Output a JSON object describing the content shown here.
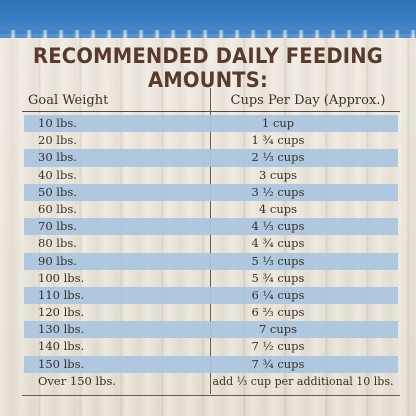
{
  "title": "RECOMMENDED DAILY FEEDING AMOUNTS:",
  "columns": {
    "weight": "Goal Weight",
    "cups": "Cups Per Day (Approx.)"
  },
  "rows": [
    {
      "weight": "10 lbs.",
      "cups": "1 cup"
    },
    {
      "weight": "20 lbs.",
      "cups": "1 ¾ cups"
    },
    {
      "weight": "30 lbs.",
      "cups": "2 ⅓ cups"
    },
    {
      "weight": "40 lbs.",
      "cups": "3 cups"
    },
    {
      "weight": "50 lbs.",
      "cups": "3 ½ cups"
    },
    {
      "weight": "60 lbs.",
      "cups": "4 cups"
    },
    {
      "weight": "70 lbs.",
      "cups": "4 ⅓ cups"
    },
    {
      "weight": "80 lbs.",
      "cups": "4 ¾ cups"
    },
    {
      "weight": "90 lbs.",
      "cups": "5 ⅓ cups"
    },
    {
      "weight": "100 lbs.",
      "cups": "5 ¾ cups"
    },
    {
      "weight": "110 lbs.",
      "cups": "6 ¼ cups"
    },
    {
      "weight": "120 lbs.",
      "cups": "6 ⅔ cups"
    },
    {
      "weight": "130 lbs.",
      "cups": "7 cups"
    },
    {
      "weight": "140 lbs.",
      "cups": "7 ½ cups"
    },
    {
      "weight": "150 lbs.",
      "cups": "7 ¾ cups"
    },
    {
      "weight": "Over 150 lbs.",
      "cups": "add ⅓ cup per additional 10 lbs."
    }
  ],
  "colors": {
    "band": "#a9c6df",
    "title": "#5a3a2a",
    "top_band": "#3b80c4"
  }
}
